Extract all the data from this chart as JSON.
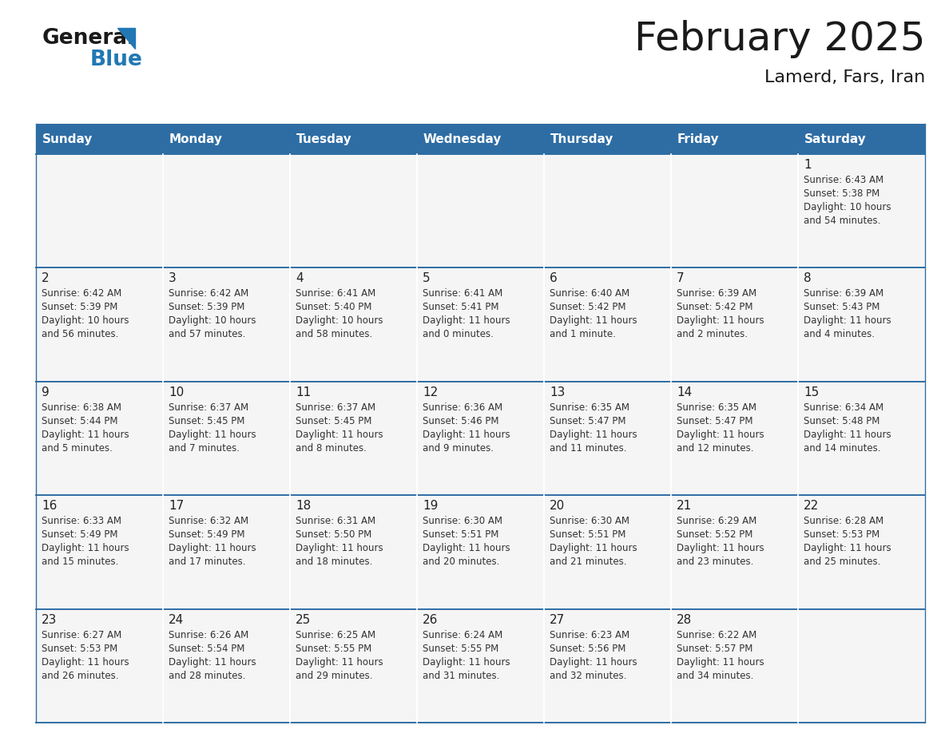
{
  "title": "February 2025",
  "subtitle": "Lamerd, Fars, Iran",
  "header_color": "#2e6da4",
  "header_text_color": "#ffffff",
  "days_of_week": [
    "Sunday",
    "Monday",
    "Tuesday",
    "Wednesday",
    "Thursday",
    "Friday",
    "Saturday"
  ],
  "cell_bg": "#f5f5f5",
  "divider_color": "#2e6da4",
  "text_color": "#333333",
  "day_num_color": "#222222",
  "calendar": [
    [
      {
        "day": null,
        "sunrise": null,
        "sunset": null,
        "daylight_line1": null,
        "daylight_line2": null
      },
      {
        "day": null,
        "sunrise": null,
        "sunset": null,
        "daylight_line1": null,
        "daylight_line2": null
      },
      {
        "day": null,
        "sunrise": null,
        "sunset": null,
        "daylight_line1": null,
        "daylight_line2": null
      },
      {
        "day": null,
        "sunrise": null,
        "sunset": null,
        "daylight_line1": null,
        "daylight_line2": null
      },
      {
        "day": null,
        "sunrise": null,
        "sunset": null,
        "daylight_line1": null,
        "daylight_line2": null
      },
      {
        "day": null,
        "sunrise": null,
        "sunset": null,
        "daylight_line1": null,
        "daylight_line2": null
      },
      {
        "day": 1,
        "sunrise": "6:43 AM",
        "sunset": "5:38 PM",
        "daylight_line1": "Daylight: 10 hours",
        "daylight_line2": "and 54 minutes."
      }
    ],
    [
      {
        "day": 2,
        "sunrise": "6:42 AM",
        "sunset": "5:39 PM",
        "daylight_line1": "Daylight: 10 hours",
        "daylight_line2": "and 56 minutes."
      },
      {
        "day": 3,
        "sunrise": "6:42 AM",
        "sunset": "5:39 PM",
        "daylight_line1": "Daylight: 10 hours",
        "daylight_line2": "and 57 minutes."
      },
      {
        "day": 4,
        "sunrise": "6:41 AM",
        "sunset": "5:40 PM",
        "daylight_line1": "Daylight: 10 hours",
        "daylight_line2": "and 58 minutes."
      },
      {
        "day": 5,
        "sunrise": "6:41 AM",
        "sunset": "5:41 PM",
        "daylight_line1": "Daylight: 11 hours",
        "daylight_line2": "and 0 minutes."
      },
      {
        "day": 6,
        "sunrise": "6:40 AM",
        "sunset": "5:42 PM",
        "daylight_line1": "Daylight: 11 hours",
        "daylight_line2": "and 1 minute."
      },
      {
        "day": 7,
        "sunrise": "6:39 AM",
        "sunset": "5:42 PM",
        "daylight_line1": "Daylight: 11 hours",
        "daylight_line2": "and 2 minutes."
      },
      {
        "day": 8,
        "sunrise": "6:39 AM",
        "sunset": "5:43 PM",
        "daylight_line1": "Daylight: 11 hours",
        "daylight_line2": "and 4 minutes."
      }
    ],
    [
      {
        "day": 9,
        "sunrise": "6:38 AM",
        "sunset": "5:44 PM",
        "daylight_line1": "Daylight: 11 hours",
        "daylight_line2": "and 5 minutes."
      },
      {
        "day": 10,
        "sunrise": "6:37 AM",
        "sunset": "5:45 PM",
        "daylight_line1": "Daylight: 11 hours",
        "daylight_line2": "and 7 minutes."
      },
      {
        "day": 11,
        "sunrise": "6:37 AM",
        "sunset": "5:45 PM",
        "daylight_line1": "Daylight: 11 hours",
        "daylight_line2": "and 8 minutes."
      },
      {
        "day": 12,
        "sunrise": "6:36 AM",
        "sunset": "5:46 PM",
        "daylight_line1": "Daylight: 11 hours",
        "daylight_line2": "and 9 minutes."
      },
      {
        "day": 13,
        "sunrise": "6:35 AM",
        "sunset": "5:47 PM",
        "daylight_line1": "Daylight: 11 hours",
        "daylight_line2": "and 11 minutes."
      },
      {
        "day": 14,
        "sunrise": "6:35 AM",
        "sunset": "5:47 PM",
        "daylight_line1": "Daylight: 11 hours",
        "daylight_line2": "and 12 minutes."
      },
      {
        "day": 15,
        "sunrise": "6:34 AM",
        "sunset": "5:48 PM",
        "daylight_line1": "Daylight: 11 hours",
        "daylight_line2": "and 14 minutes."
      }
    ],
    [
      {
        "day": 16,
        "sunrise": "6:33 AM",
        "sunset": "5:49 PM",
        "daylight_line1": "Daylight: 11 hours",
        "daylight_line2": "and 15 minutes."
      },
      {
        "day": 17,
        "sunrise": "6:32 AM",
        "sunset": "5:49 PM",
        "daylight_line1": "Daylight: 11 hours",
        "daylight_line2": "and 17 minutes."
      },
      {
        "day": 18,
        "sunrise": "6:31 AM",
        "sunset": "5:50 PM",
        "daylight_line1": "Daylight: 11 hours",
        "daylight_line2": "and 18 minutes."
      },
      {
        "day": 19,
        "sunrise": "6:30 AM",
        "sunset": "5:51 PM",
        "daylight_line1": "Daylight: 11 hours",
        "daylight_line2": "and 20 minutes."
      },
      {
        "day": 20,
        "sunrise": "6:30 AM",
        "sunset": "5:51 PM",
        "daylight_line1": "Daylight: 11 hours",
        "daylight_line2": "and 21 minutes."
      },
      {
        "day": 21,
        "sunrise": "6:29 AM",
        "sunset": "5:52 PM",
        "daylight_line1": "Daylight: 11 hours",
        "daylight_line2": "and 23 minutes."
      },
      {
        "day": 22,
        "sunrise": "6:28 AM",
        "sunset": "5:53 PM",
        "daylight_line1": "Daylight: 11 hours",
        "daylight_line2": "and 25 minutes."
      }
    ],
    [
      {
        "day": 23,
        "sunrise": "6:27 AM",
        "sunset": "5:53 PM",
        "daylight_line1": "Daylight: 11 hours",
        "daylight_line2": "and 26 minutes."
      },
      {
        "day": 24,
        "sunrise": "6:26 AM",
        "sunset": "5:54 PM",
        "daylight_line1": "Daylight: 11 hours",
        "daylight_line2": "and 28 minutes."
      },
      {
        "day": 25,
        "sunrise": "6:25 AM",
        "sunset": "5:55 PM",
        "daylight_line1": "Daylight: 11 hours",
        "daylight_line2": "and 29 minutes."
      },
      {
        "day": 26,
        "sunrise": "6:24 AM",
        "sunset": "5:55 PM",
        "daylight_line1": "Daylight: 11 hours",
        "daylight_line2": "and 31 minutes."
      },
      {
        "day": 27,
        "sunrise": "6:23 AM",
        "sunset": "5:56 PM",
        "daylight_line1": "Daylight: 11 hours",
        "daylight_line2": "and 32 minutes."
      },
      {
        "day": 28,
        "sunrise": "6:22 AM",
        "sunset": "5:57 PM",
        "daylight_line1": "Daylight: 11 hours",
        "daylight_line2": "and 34 minutes."
      },
      {
        "day": null,
        "sunrise": null,
        "sunset": null,
        "daylight_line1": null,
        "daylight_line2": null
      }
    ]
  ],
  "logo_general_color": "#1a1a1a",
  "logo_blue_color": "#2178b4"
}
